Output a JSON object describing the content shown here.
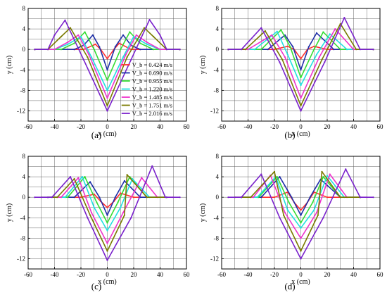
{
  "figure": {
    "legend_title": "",
    "legend_entries": [
      "V_b = 0.424 m/s",
      "V_b = 0.690 m/s",
      "V_b = 0.955 m/s",
      "V_b = 1.220 m/s",
      "V_b = 1.485 m/s",
      "V_b = 1.751 m/s",
      "V_b = 2.016 m/s"
    ],
    "colors": {
      "s1": "#ff3030",
      "s2": "#1f2fa8",
      "s3": "#33dd33",
      "s4": "#22e0e0",
      "s5": "#ee33cc",
      "s6": "#7a7a00",
      "s7": "#7a22cc"
    },
    "icons": [
      "square-marker",
      "diamond-marker"
    ]
  },
  "chart_data": [
    {
      "panel": "(a)",
      "type": "line",
      "xlabel": "x (cm)",
      "ylabel": "y (cm)",
      "xlim": [
        -60,
        60
      ],
      "ylim": [
        -14,
        8
      ],
      "xticks": [
        -60,
        -40,
        -20,
        0,
        20,
        40,
        60
      ],
      "yticks": [
        -12,
        -8,
        -4,
        0,
        4,
        8
      ],
      "grid": true,
      "legend_placement": "center-right",
      "series": [
        {
          "name": "V_b = 0.424 m/s",
          "color": "#ff3030",
          "x": [
            -55,
            -25,
            -18,
            -9,
            -5,
            0,
            5,
            9,
            18,
            25,
            55
          ],
          "y": [
            0,
            0,
            0,
            1.0,
            0,
            -1.8,
            0,
            1.2,
            0,
            0,
            0
          ]
        },
        {
          "name": "V_b = 0.690 m/s",
          "color": "#1f2fa8",
          "x": [
            -55,
            -25,
            -18,
            -11,
            -6,
            0,
            6,
            12,
            18,
            25,
            55
          ],
          "y": [
            0,
            0,
            0.8,
            2.8,
            0.5,
            -4.0,
            0.5,
            2.8,
            0.8,
            0,
            0
          ]
        },
        {
          "name": "V_b = 0.955 m/s",
          "color": "#33dd33",
          "x": [
            -55,
            -35,
            -25,
            -17,
            -10,
            0,
            10,
            17,
            25,
            35,
            55
          ],
          "y": [
            0,
            0,
            1.2,
            3.4,
            0,
            -6.0,
            0,
            3.4,
            1.2,
            0,
            0
          ]
        },
        {
          "name": "V_b = 1.220 m/s",
          "color": "#22e0e0",
          "x": [
            -55,
            -40,
            -30,
            -20,
            -12,
            0,
            12,
            20,
            30,
            40,
            55
          ],
          "y": [
            0,
            0,
            1.0,
            2.5,
            -1.5,
            -8.0,
            -1.5,
            2.5,
            1.0,
            0,
            0
          ]
        },
        {
          "name": "V_b = 1.485 m/s",
          "color": "#ee33cc",
          "x": [
            -55,
            -40,
            -30,
            -22,
            -14,
            0,
            14,
            22,
            30,
            40,
            55
          ],
          "y": [
            0,
            0,
            1.4,
            2.8,
            -1.0,
            -9.5,
            -1.0,
            2.8,
            1.4,
            0,
            0
          ]
        },
        {
          "name": "V_b = 1.751 m/s",
          "color": "#7a7a00",
          "x": [
            -55,
            -45,
            -35,
            -28,
            -15,
            0,
            15,
            28,
            35,
            45,
            55
          ],
          "y": [
            0,
            0,
            2.5,
            4.2,
            -1.5,
            -11.0,
            -1.5,
            4.2,
            2.5,
            0,
            0
          ]
        },
        {
          "name": "V_b = 2.016 m/s",
          "color": "#7a22cc",
          "x": [
            -55,
            -45,
            -40,
            -32,
            -18,
            0,
            18,
            32,
            40,
            45,
            55
          ],
          "y": [
            0,
            0,
            2.8,
            5.7,
            -2.0,
            -12.0,
            -2.0,
            5.8,
            2.8,
            0,
            0
          ]
        }
      ]
    },
    {
      "panel": "(b)",
      "type": "line",
      "xlabel": "x (cm)",
      "ylabel": "y (cm)",
      "xlim": [
        -60,
        60
      ],
      "ylim": [
        -14,
        8
      ],
      "xticks": [
        -60,
        -40,
        -20,
        0,
        20,
        40,
        60
      ],
      "yticks": [
        -12,
        -8,
        -4,
        0,
        4,
        8
      ],
      "grid": true,
      "series": [
        {
          "name": "V_b = 0.424 m/s",
          "color": "#ff3030",
          "x": [
            -55,
            -20,
            -10,
            -5,
            0,
            5,
            10,
            20,
            55
          ],
          "y": [
            0,
            0,
            0.6,
            0,
            -1.8,
            0,
            0.6,
            0,
            0
          ]
        },
        {
          "name": "V_b = 0.690 m/s",
          "color": "#1f2fa8",
          "x": [
            -55,
            -25,
            -12,
            -6,
            0,
            6,
            12,
            25,
            55
          ],
          "y": [
            0,
            0,
            2.8,
            0.5,
            -4.0,
            0.5,
            3.2,
            0,
            0
          ]
        },
        {
          "name": "V_b = 0.955 m/s",
          "color": "#33dd33",
          "x": [
            -55,
            -30,
            -15,
            -8,
            0,
            10,
            17,
            30,
            55
          ],
          "y": [
            0,
            0,
            3.8,
            0.5,
            -5.5,
            0,
            3.4,
            0,
            0
          ]
        },
        {
          "name": "V_b = 1.220 m/s",
          "color": "#22e0e0",
          "x": [
            -55,
            -35,
            -18,
            -10,
            0,
            12,
            22,
            35,
            55
          ],
          "y": [
            0,
            0,
            3.5,
            -1.0,
            -7.0,
            -1.0,
            3.0,
            0,
            0
          ]
        },
        {
          "name": "V_b = 1.485 m/s",
          "color": "#ee33cc",
          "x": [
            -55,
            -40,
            -22,
            -12,
            0,
            14,
            26,
            40,
            55
          ],
          "y": [
            0,
            0,
            2.8,
            -1.5,
            -9.5,
            -1.5,
            4.0,
            0,
            0
          ]
        },
        {
          "name": "V_b = 1.751 m/s",
          "color": "#7a7a00",
          "x": [
            -55,
            -42,
            -27,
            -14,
            0,
            16,
            30,
            42,
            55
          ],
          "y": [
            0,
            0,
            3.6,
            -2.0,
            -11.0,
            -2.0,
            5.0,
            0,
            0
          ]
        },
        {
          "name": "V_b = 2.016 m/s",
          "color": "#7a22cc",
          "x": [
            -55,
            -45,
            -30,
            -16,
            0,
            18,
            33,
            45,
            55
          ],
          "y": [
            0,
            0,
            4.2,
            -2.5,
            -12.0,
            -2.5,
            6.2,
            0,
            0
          ]
        }
      ]
    },
    {
      "panel": "(c)",
      "type": "line",
      "xlabel": "x (cm)",
      "ylabel": "y (cm)",
      "xlim": [
        -60,
        60
      ],
      "ylim": [
        -14,
        8
      ],
      "xticks": [
        -60,
        -40,
        -20,
        0,
        20,
        40,
        60
      ],
      "yticks": [
        -12,
        -8,
        -4,
        0,
        4,
        8
      ],
      "grid": true,
      "series": [
        {
          "name": "V_b = 0.424 m/s",
          "color": "#ff3030",
          "x": [
            -45,
            -20,
            -10,
            -5,
            0,
            5,
            10,
            20,
            45
          ],
          "y": [
            0,
            0,
            0.6,
            -0.8,
            -2.0,
            -0.8,
            0.8,
            0,
            0
          ]
        },
        {
          "name": "V_b = 0.690 m/s",
          "color": "#1f2fa8",
          "x": [
            -45,
            -25,
            -13,
            -6,
            0,
            6,
            13,
            25,
            45
          ],
          "y": [
            0,
            0,
            3.0,
            0,
            -3.5,
            0,
            3.2,
            0,
            0
          ]
        },
        {
          "name": "V_b = 0.955 m/s",
          "color": "#33dd33",
          "x": [
            -45,
            -30,
            -17,
            -8,
            0,
            8,
            17,
            30,
            45
          ],
          "y": [
            0,
            0,
            4.0,
            -1.0,
            -5.0,
            -1.0,
            4.0,
            0,
            0
          ]
        },
        {
          "name": "V_b = 1.220 m/s",
          "color": "#22e0e0",
          "x": [
            -45,
            -32,
            -19,
            -10,
            0,
            10,
            19,
            32,
            45
          ],
          "y": [
            0,
            0,
            4.0,
            -2.0,
            -6.5,
            -2.0,
            3.6,
            0,
            0
          ]
        },
        {
          "name": "V_b = 1.485 m/s",
          "color": "#ee33cc",
          "x": [
            -45,
            -35,
            -22,
            -12,
            0,
            12,
            26,
            38,
            50
          ],
          "y": [
            0,
            0,
            3.8,
            -3.0,
            -9.0,
            -3.0,
            3.8,
            0,
            0
          ]
        },
        {
          "name": "V_b = 1.751 m/s",
          "color": "#7a7a00",
          "x": [
            -50,
            -38,
            -25,
            -13,
            0,
            13,
            15,
            30,
            45
          ],
          "y": [
            0,
            0,
            3.6,
            -3.5,
            -10.5,
            -3.5,
            4.4,
            0,
            0
          ]
        },
        {
          "name": "V_b = 2.016 m/s",
          "color": "#7a22cc",
          "x": [
            -55,
            -42,
            -28,
            -15,
            0,
            18,
            34,
            44,
            55
          ],
          "y": [
            0,
            0,
            4.0,
            -4.0,
            -12.3,
            -4.0,
            6.1,
            0,
            0
          ]
        }
      ]
    },
    {
      "panel": "(d)",
      "type": "line",
      "xlabel": "x (cm)",
      "ylabel": "y (cm)",
      "xlim": [
        -60,
        60
      ],
      "ylim": [
        -14,
        8
      ],
      "xticks": [
        -60,
        -40,
        -20,
        0,
        20,
        40,
        60
      ],
      "yticks": [
        -12,
        -8,
        -4,
        0,
        4,
        8
      ],
      "grid": true,
      "series": [
        {
          "name": "V_b = 0.424 m/s",
          "color": "#ff3030",
          "x": [
            -45,
            -20,
            -10,
            -5,
            0,
            5,
            10,
            20,
            45
          ],
          "y": [
            0,
            0,
            1.0,
            -1.0,
            -2.5,
            -1.0,
            1.0,
            0,
            0
          ]
        },
        {
          "name": "V_b = 0.690 m/s",
          "color": "#1f2fa8",
          "x": [
            -45,
            -30,
            -16,
            -7,
            0,
            7,
            15,
            30,
            45
          ],
          "y": [
            0,
            0,
            4.0,
            0,
            -3.5,
            0,
            3.5,
            0,
            0
          ]
        },
        {
          "name": "V_b = 0.955 m/s",
          "color": "#33dd33",
          "x": [
            -45,
            -32,
            -18,
            -9,
            0,
            9,
            17,
            30,
            45
          ],
          "y": [
            0,
            0,
            4.0,
            -1.0,
            -5.0,
            -1.0,
            4.0,
            0,
            0
          ]
        },
        {
          "name": "V_b = 1.220 m/s",
          "color": "#22e0e0",
          "x": [
            -45,
            -33,
            -19,
            -10,
            0,
            10,
            20,
            33,
            45
          ],
          "y": [
            0,
            0,
            4.0,
            -2.5,
            -6.0,
            -2.5,
            4.2,
            0,
            0
          ]
        },
        {
          "name": "V_b = 1.485 m/s",
          "color": "#ee33cc",
          "x": [
            -50,
            -36,
            -23,
            -12,
            0,
            12,
            22,
            35,
            50
          ],
          "y": [
            0,
            0,
            4.3,
            -3.0,
            -8.0,
            -3.0,
            4.5,
            0,
            0
          ]
        },
        {
          "name": "V_b = 1.751 m/s",
          "color": "#7a7a00",
          "x": [
            -50,
            -38,
            -20,
            -13,
            0,
            13,
            16,
            30,
            45
          ],
          "y": [
            0,
            0,
            5.0,
            -3.5,
            -10.5,
            -3.5,
            5.0,
            0,
            0
          ]
        },
        {
          "name": "V_b = 2.016 m/s",
          "color": "#7a22cc",
          "x": [
            -55,
            -45,
            -30,
            -16,
            0,
            17,
            34,
            45,
            55
          ],
          "y": [
            0,
            0,
            4.5,
            -4.0,
            -12.0,
            -4.0,
            5.5,
            0,
            0
          ]
        }
      ]
    }
  ]
}
